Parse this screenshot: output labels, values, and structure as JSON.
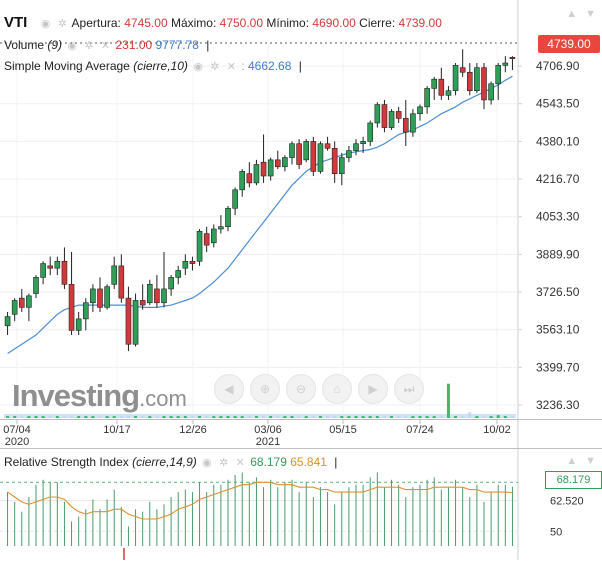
{
  "header": {
    "ticker": "VTI",
    "apertura_label": "Apertura:",
    "apertura_value": "4745.00",
    "maximo_label": "Máximo:",
    "maximo_value": "4750.00",
    "minimo_label": "Mínimo:",
    "minimo_value": "4690.00",
    "cierre_label": "Cierre:",
    "cierre_value": "4739.00"
  },
  "volume_legend": {
    "label": "Volume",
    "params": "(9)",
    "value1": "231.00",
    "value2": "9777.78"
  },
  "sma_legend": {
    "label": "Simple Moving Average",
    "params": "(cierre,10)",
    "value": "4662.68"
  },
  "rsi_legend": {
    "label": "Relative Strength Index",
    "params": "(cierre,14,9)",
    "value1": "68.179",
    "value2": "65.841"
  },
  "price_tag": "4739.00",
  "rsi_tag": "68.179",
  "watermark": {
    "brand": "Investing",
    "suffix": ".com"
  },
  "icons": [
    "eye-icon",
    "settings-icon",
    "close-icon",
    "chevron-up-icon",
    "chevron-down-icon",
    "nav-left-icon",
    "zoom-in-icon",
    "zoom-out-icon",
    "zoom-reset-icon",
    "nav-right-icon",
    "nav-end-icon"
  ],
  "colors": {
    "up": "#2f9e58",
    "down": "#d23a3a",
    "sma": "#4a8fd6",
    "rsi_signal": "#e0912a",
    "rsi_bars": "#4a9a6a",
    "price_tag_bg": "#e9473e"
  },
  "x_axis": {
    "labels": [
      {
        "top": "07/04",
        "bottom": "2020"
      },
      {
        "top": "10/17",
        "bottom": ""
      },
      {
        "top": "12/26",
        "bottom": ""
      },
      {
        "top": "03/06",
        "bottom": "2021"
      },
      {
        "top": "05/15",
        "bottom": ""
      },
      {
        "top": "07/24",
        "bottom": ""
      },
      {
        "top": "10/02",
        "bottom": ""
      }
    ]
  },
  "chart_data": [
    {
      "type": "candlestick",
      "y_ticks": [
        "4706.90",
        "4543.50",
        "4380.10",
        "4216.70",
        "4053.30",
        "3889.90",
        "3726.50",
        "3563.10",
        "3399.70",
        "3236.30"
      ],
      "ylim": [
        3180,
        4820
      ],
      "candles": [
        {
          "o": 3580,
          "h": 3640,
          "l": 3540,
          "c": 3620
        },
        {
          "o": 3630,
          "h": 3700,
          "l": 3600,
          "c": 3690
        },
        {
          "o": 3700,
          "h": 3740,
          "l": 3640,
          "c": 3660
        },
        {
          "o": 3660,
          "h": 3720,
          "l": 3600,
          "c": 3710
        },
        {
          "o": 3720,
          "h": 3800,
          "l": 3700,
          "c": 3790
        },
        {
          "o": 3790,
          "h": 3860,
          "l": 3760,
          "c": 3850
        },
        {
          "o": 3840,
          "h": 3880,
          "l": 3800,
          "c": 3830
        },
        {
          "o": 3830,
          "h": 3880,
          "l": 3800,
          "c": 3860
        },
        {
          "o": 3860,
          "h": 3920,
          "l": 3740,
          "c": 3760
        },
        {
          "o": 3760,
          "h": 3900,
          "l": 3540,
          "c": 3560
        },
        {
          "o": 3560,
          "h": 3640,
          "l": 3540,
          "c": 3610
        },
        {
          "o": 3610,
          "h": 3700,
          "l": 3560,
          "c": 3680
        },
        {
          "o": 3680,
          "h": 3760,
          "l": 3640,
          "c": 3740
        },
        {
          "o": 3740,
          "h": 3790,
          "l": 3640,
          "c": 3660
        },
        {
          "o": 3660,
          "h": 3760,
          "l": 3650,
          "c": 3750
        },
        {
          "o": 3760,
          "h": 3880,
          "l": 3740,
          "c": 3840
        },
        {
          "o": 3840,
          "h": 3890,
          "l": 3680,
          "c": 3700
        },
        {
          "o": 3700,
          "h": 3750,
          "l": 3470,
          "c": 3500
        },
        {
          "o": 3500,
          "h": 3720,
          "l": 3490,
          "c": 3690
        },
        {
          "o": 3690,
          "h": 3760,
          "l": 3650,
          "c": 3670
        },
        {
          "o": 3680,
          "h": 3780,
          "l": 3670,
          "c": 3760
        },
        {
          "o": 3740,
          "h": 3800,
          "l": 3660,
          "c": 3680
        },
        {
          "o": 3680,
          "h": 3900,
          "l": 3660,
          "c": 3740
        },
        {
          "o": 3740,
          "h": 3800,
          "l": 3710,
          "c": 3790
        },
        {
          "o": 3790,
          "h": 3840,
          "l": 3760,
          "c": 3820
        },
        {
          "o": 3830,
          "h": 3890,
          "l": 3800,
          "c": 3860
        },
        {
          "o": 3860,
          "h": 3880,
          "l": 3820,
          "c": 3850
        },
        {
          "o": 3860,
          "h": 4000,
          "l": 3840,
          "c": 3990
        },
        {
          "o": 3980,
          "h": 4010,
          "l": 3900,
          "c": 3930
        },
        {
          "o": 3940,
          "h": 4020,
          "l": 3920,
          "c": 4000
        },
        {
          "o": 4000,
          "h": 4060,
          "l": 3980,
          "c": 4010
        },
        {
          "o": 4010,
          "h": 4100,
          "l": 3990,
          "c": 4090
        },
        {
          "o": 4090,
          "h": 4180,
          "l": 4060,
          "c": 4170
        },
        {
          "o": 4170,
          "h": 4260,
          "l": 4140,
          "c": 4250
        },
        {
          "o": 4240,
          "h": 4290,
          "l": 4180,
          "c": 4200
        },
        {
          "o": 4200,
          "h": 4300,
          "l": 4190,
          "c": 4280
        },
        {
          "o": 4290,
          "h": 4410,
          "l": 4200,
          "c": 4230
        },
        {
          "o": 4230,
          "h": 4310,
          "l": 4210,
          "c": 4300
        },
        {
          "o": 4300,
          "h": 4340,
          "l": 4260,
          "c": 4270
        },
        {
          "o": 4270,
          "h": 4320,
          "l": 4250,
          "c": 4310
        },
        {
          "o": 4310,
          "h": 4380,
          "l": 4280,
          "c": 4370
        },
        {
          "o": 4370,
          "h": 4390,
          "l": 4260,
          "c": 4280
        },
        {
          "o": 4300,
          "h": 4390,
          "l": 4290,
          "c": 4380
        },
        {
          "o": 4380,
          "h": 4400,
          "l": 4230,
          "c": 4250
        },
        {
          "o": 4250,
          "h": 4380,
          "l": 4240,
          "c": 4370
        },
        {
          "o": 4370,
          "h": 4400,
          "l": 4340,
          "c": 4350
        },
        {
          "o": 4350,
          "h": 4380,
          "l": 4200,
          "c": 4240
        },
        {
          "o": 4240,
          "h": 4330,
          "l": 4190,
          "c": 4310
        },
        {
          "o": 4310,
          "h": 4360,
          "l": 4290,
          "c": 4340
        },
        {
          "o": 4340,
          "h": 4390,
          "l": 4320,
          "c": 4370
        },
        {
          "o": 4370,
          "h": 4400,
          "l": 4330,
          "c": 4380
        },
        {
          "o": 4380,
          "h": 4470,
          "l": 4360,
          "c": 4460
        },
        {
          "o": 4460,
          "h": 4550,
          "l": 4440,
          "c": 4540
        },
        {
          "o": 4540,
          "h": 4560,
          "l": 4420,
          "c": 4440
        },
        {
          "o": 4440,
          "h": 4520,
          "l": 4430,
          "c": 4510
        },
        {
          "o": 4510,
          "h": 4530,
          "l": 4460,
          "c": 4480
        },
        {
          "o": 4480,
          "h": 4560,
          "l": 4360,
          "c": 4420
        },
        {
          "o": 4420,
          "h": 4520,
          "l": 4400,
          "c": 4500
        },
        {
          "o": 4500,
          "h": 4540,
          "l": 4470,
          "c": 4530
        },
        {
          "o": 4530,
          "h": 4620,
          "l": 4500,
          "c": 4610
        },
        {
          "o": 4610,
          "h": 4660,
          "l": 4560,
          "c": 4650
        },
        {
          "o": 4650,
          "h": 4700,
          "l": 4560,
          "c": 4580
        },
        {
          "o": 4580,
          "h": 4620,
          "l": 4560,
          "c": 4600
        },
        {
          "o": 4600,
          "h": 4720,
          "l": 4580,
          "c": 4710
        },
        {
          "o": 4700,
          "h": 4780,
          "l": 4660,
          "c": 4680
        },
        {
          "o": 4680,
          "h": 4720,
          "l": 4580,
          "c": 4600
        },
        {
          "o": 4600,
          "h": 4720,
          "l": 4590,
          "c": 4700
        },
        {
          "o": 4700,
          "h": 4720,
          "l": 4520,
          "c": 4560
        },
        {
          "o": 4560,
          "h": 4640,
          "l": 4540,
          "c": 4630
        },
        {
          "o": 4630,
          "h": 4720,
          "l": 4560,
          "c": 4710
        },
        {
          "o": 4710,
          "h": 4750,
          "l": 4680,
          "c": 4720
        },
        {
          "o": 4745,
          "h": 4750,
          "l": 4690,
          "c": 4739
        }
      ],
      "sma": [
        3460,
        3480,
        3500,
        3520,
        3540,
        3570,
        3600,
        3630,
        3650,
        3660,
        3670,
        3670,
        3670,
        3670,
        3670,
        3670,
        3670,
        3670,
        3665,
        3660,
        3660,
        3660,
        3665,
        3670,
        3680,
        3690,
        3700,
        3720,
        3745,
        3770,
        3800,
        3830,
        3870,
        3910,
        3950,
        3990,
        4030,
        4070,
        4110,
        4150,
        4190,
        4220,
        4250,
        4270,
        4290,
        4300,
        4310,
        4320,
        4330,
        4335,
        4340,
        4345,
        4355,
        4370,
        4390,
        4410,
        4420,
        4430,
        4445,
        4460,
        4480,
        4500,
        4515,
        4530,
        4550,
        4565,
        4580,
        4595,
        4610,
        4625,
        4645,
        4662.68
      ],
      "volume": [
        0,
        0,
        0,
        0,
        0,
        0,
        0,
        0,
        0,
        0,
        0,
        0,
        0,
        0,
        0,
        0,
        0,
        0,
        0,
        0,
        0,
        0,
        0,
        0,
        0,
        0,
        0,
        0,
        0,
        0,
        0,
        0,
        0,
        0,
        0,
        0,
        0,
        0,
        0,
        0,
        0,
        0,
        0,
        0,
        0,
        0,
        0,
        0,
        0,
        0,
        0,
        0,
        0,
        0,
        0,
        0,
        0,
        0,
        0,
        0,
        0,
        0,
        12,
        0,
        0,
        2,
        0,
        0,
        0,
        1,
        0,
        0
      ],
      "volume_note_values": [
        "231.00",
        "9777.78"
      ]
    },
    {
      "type": "rsi",
      "y_ticks": [
        "70",
        "62.520",
        "50"
      ],
      "ylim": [
        44,
        75
      ],
      "rsi": [
        66,
        62,
        58,
        64,
        69,
        71,
        70,
        70,
        62,
        54,
        56,
        59,
        63,
        59,
        63,
        67,
        60,
        52,
        59,
        58,
        62,
        59,
        61,
        64,
        66,
        67,
        66,
        70,
        66,
        69,
        69,
        71,
        73,
        74,
        70,
        72,
        68,
        71,
        68,
        70,
        71,
        66,
        70,
        64,
        68,
        66,
        61,
        66,
        68,
        69,
        69,
        72,
        74,
        68,
        71,
        69,
        64,
        68,
        69,
        71,
        72,
        67,
        68,
        71,
        68,
        64,
        69,
        62,
        66,
        69,
        69,
        68.179
      ],
      "signal": [
        66,
        64,
        62,
        61,
        62,
        63,
        64,
        64,
        63,
        60,
        58,
        57,
        58,
        58,
        58,
        59,
        59,
        57,
        56,
        55,
        55,
        55,
        56,
        57,
        59,
        60,
        61,
        63,
        64,
        65,
        66,
        67,
        68,
        69,
        69,
        70,
        70,
        70,
        69,
        69,
        69,
        68,
        68,
        68,
        67,
        67,
        66,
        66,
        66,
        66,
        66,
        67,
        68,
        68,
        68,
        68,
        67,
        67,
        67,
        67,
        68,
        68,
        68,
        68,
        68,
        67,
        67,
        66,
        66,
        66,
        66,
        65.841
      ]
    }
  ]
}
